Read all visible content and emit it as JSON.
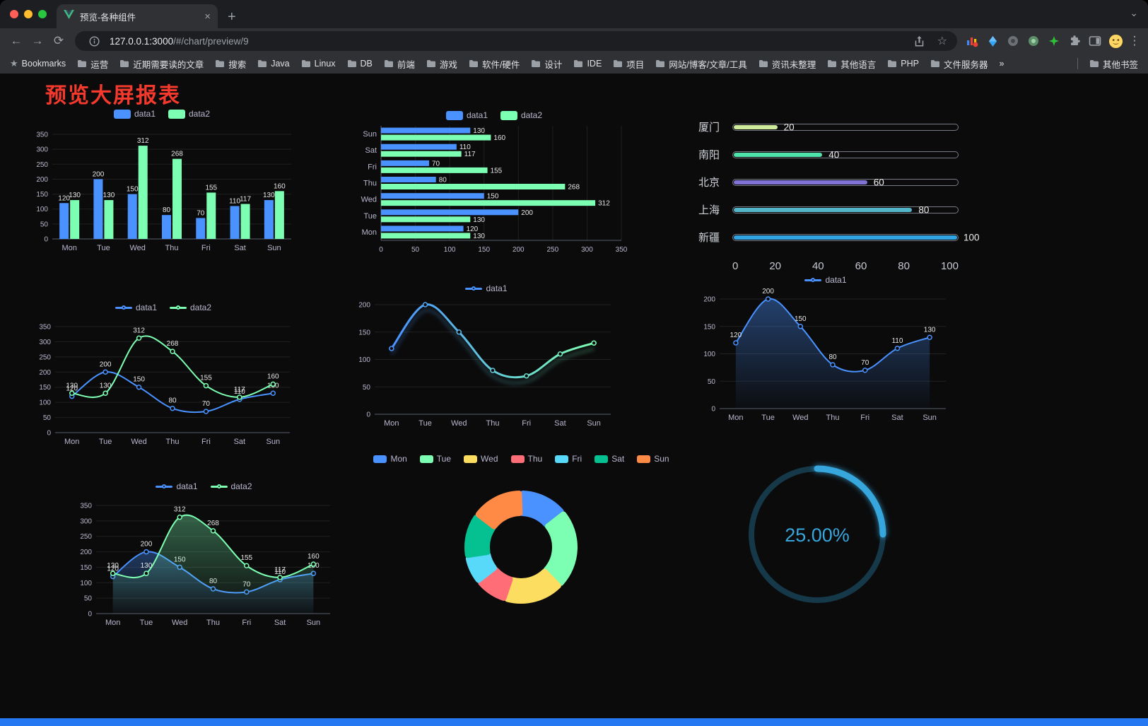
{
  "browser": {
    "tab_title": "预览-各种组件",
    "url_host": "127.0.0.1:3000",
    "url_path": "/#/chart/preview/9",
    "bookmarks_label": "Bookmarks",
    "bookmark_folders": [
      "运营",
      "近期需要读的文章",
      "搜索",
      "Java",
      "Linux",
      "DB",
      "前端",
      "游戏",
      "软件/硬件",
      "设计",
      "IDE",
      "项目",
      "网站/博客/文章/工具",
      "资讯未整理",
      "其他语言",
      "PHP",
      "文件服务器"
    ],
    "bookmarks_overflow": "»",
    "other_bookmarks": "其他书签"
  },
  "page": {
    "title": "预览大屏报表",
    "title_color": "#f5392c",
    "background": "#0b0b0c",
    "accent_blue": "#4992ff",
    "accent_green": "#7cffb2"
  },
  "chart_data": [
    {
      "id": "grouped-bar",
      "type": "bar",
      "legend": [
        "data1",
        "data2"
      ],
      "legend_position": "top",
      "categories": [
        "Mon",
        "Tue",
        "Wed",
        "Thu",
        "Fri",
        "Sat",
        "Sun"
      ],
      "series": [
        {
          "name": "data1",
          "color": "#4992ff",
          "values": [
            120,
            200,
            150,
            80,
            70,
            110,
            130
          ]
        },
        {
          "name": "data2",
          "color": "#7cffb2",
          "values": [
            130,
            130,
            312,
            268,
            155,
            117,
            160
          ]
        }
      ],
      "ylim": [
        0,
        350
      ],
      "ytick": 50,
      "grid": true,
      "value_labels": true
    },
    {
      "id": "horizontal-bar",
      "type": "bar",
      "orientation": "horizontal",
      "legend": [
        "data1",
        "data2"
      ],
      "legend_position": "top",
      "categories": [
        "Mon",
        "Tue",
        "Wed",
        "Thu",
        "Fri",
        "Sat",
        "Sun"
      ],
      "series": [
        {
          "name": "data1",
          "color": "#4992ff",
          "values": [
            120,
            200,
            150,
            80,
            70,
            110,
            130
          ]
        },
        {
          "name": "data2",
          "color": "#7cffb2",
          "values": [
            130,
            130,
            312,
            268,
            155,
            117,
            160
          ]
        }
      ],
      "xlim": [
        0,
        350
      ],
      "xtick": 50,
      "grid": true,
      "value_labels": true
    },
    {
      "id": "city-progress",
      "type": "bar",
      "orientation": "horizontal-progress",
      "rows": [
        {
          "label": "厦门",
          "value": 20,
          "color": "#cdeb9b"
        },
        {
          "label": "南阳",
          "value": 40,
          "color": "#4de3ab"
        },
        {
          "label": "北京",
          "value": 60,
          "color": "#8173d6"
        },
        {
          "label": "上海",
          "value": 80,
          "color": "#52b5c8"
        },
        {
          "label": "新疆",
          "value": 100,
          "color": "#31a5e3"
        }
      ],
      "xlim": [
        0,
        100
      ],
      "xticks": [
        0,
        20,
        40,
        60,
        80,
        100
      ]
    },
    {
      "id": "double-line",
      "type": "line",
      "smooth": true,
      "legend": [
        "data1",
        "data2"
      ],
      "legend_position": "top",
      "categories": [
        "Mon",
        "Tue",
        "Wed",
        "Thu",
        "Fri",
        "Sat",
        "Sun"
      ],
      "series": [
        {
          "name": "data1",
          "color": "#4992ff",
          "values": [
            120,
            200,
            150,
            80,
            70,
            110,
            130
          ]
        },
        {
          "name": "data2",
          "color": "#7cffb2",
          "values": [
            130,
            130,
            312,
            268,
            155,
            117,
            160
          ]
        }
      ],
      "ylim": [
        0,
        350
      ],
      "ytick": 50,
      "grid": true,
      "value_labels": true
    },
    {
      "id": "gradient-line",
      "type": "line",
      "smooth": true,
      "legend": [
        "data1"
      ],
      "legend_position": "top",
      "categories": [
        "Mon",
        "Tue",
        "Wed",
        "Thu",
        "Fri",
        "Sat",
        "Sun"
      ],
      "series": [
        {
          "name": "data1",
          "color_start": "#4992ff",
          "color_end": "#7cffb2",
          "values": [
            120,
            200,
            150,
            80,
            70,
            110,
            130
          ]
        }
      ],
      "ylim": [
        0,
        200
      ],
      "ytick": 50,
      "grid": true,
      "value_labels": false,
      "shadow": true
    },
    {
      "id": "area-line",
      "type": "area",
      "smooth": true,
      "legend": [
        "data1"
      ],
      "legend_position": "top",
      "categories": [
        "Mon",
        "Tue",
        "Wed",
        "Thu",
        "Fri",
        "Sat",
        "Sun"
      ],
      "series": [
        {
          "name": "data1",
          "color": "#4992ff",
          "values": [
            120,
            200,
            150,
            80,
            70,
            110,
            130
          ],
          "area": true
        }
      ],
      "ylim": [
        0,
        200
      ],
      "ytick": 50,
      "grid": true,
      "value_labels": true
    },
    {
      "id": "double-line-area",
      "type": "area",
      "smooth": true,
      "legend": [
        "data1",
        "data2"
      ],
      "legend_position": "top",
      "categories": [
        "Mon",
        "Tue",
        "Wed",
        "Thu",
        "Fri",
        "Sat",
        "Sun"
      ],
      "series": [
        {
          "name": "data1",
          "color": "#4992ff",
          "values": [
            120,
            200,
            150,
            80,
            70,
            110,
            130
          ],
          "area": true
        },
        {
          "name": "data2",
          "color": "#7cffb2",
          "values": [
            130,
            130,
            312,
            268,
            155,
            117,
            160
          ],
          "area": true
        }
      ],
      "ylim": [
        0,
        350
      ],
      "ytick": 50,
      "grid": true,
      "value_labels": true
    },
    {
      "id": "weekday-donut",
      "type": "pie",
      "donut": true,
      "legend_position": "top",
      "labels": [
        "Mon",
        "Tue",
        "Wed",
        "Thu",
        "Fri",
        "Sat",
        "Sun"
      ],
      "values": [
        120,
        200,
        150,
        80,
        70,
        110,
        130
      ],
      "colors": [
        "#4992ff",
        "#7cffb2",
        "#fddd60",
        "#ff6e76",
        "#58d9f9",
        "#05c091",
        "#ff8a45"
      ]
    },
    {
      "id": "percent-gauge",
      "type": "gauge",
      "value": 25,
      "max": 100,
      "display": "25.00%",
      "color": "#36a6dd",
      "track_color": "#16394a"
    }
  ]
}
